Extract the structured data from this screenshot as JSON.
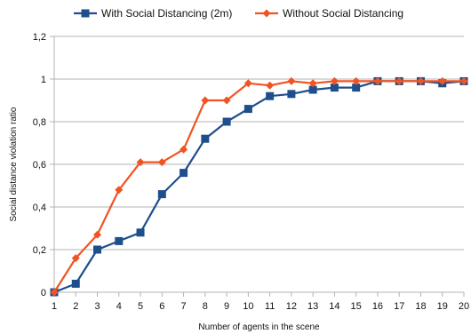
{
  "chart_data": {
    "type": "line",
    "xlabel": "Number of agents in the scene",
    "ylabel": "Social distance violation ratio",
    "categories": [
      "1",
      "2",
      "3",
      "4",
      "5",
      "6",
      "7",
      "8",
      "9",
      "10",
      "11",
      "12",
      "13",
      "14",
      "15",
      "16",
      "17",
      "18",
      "19",
      "20"
    ],
    "y_ticks": [
      "0",
      "0,2",
      "0,4",
      "0,6",
      "0,8",
      "1",
      "1,2"
    ],
    "ylim": [
      0,
      1.2
    ],
    "grid": "horizontal",
    "legend_position": "top",
    "series": [
      {
        "name": "With Social Distancing (2m)",
        "color": "#1f4e8c",
        "marker": "square",
        "values": [
          0.0,
          0.04,
          0.2,
          0.24,
          0.28,
          0.46,
          0.56,
          0.72,
          0.8,
          0.86,
          0.92,
          0.93,
          0.95,
          0.96,
          0.96,
          0.99,
          0.99,
          0.99,
          0.98,
          0.99
        ]
      },
      {
        "name": "Without Social Distancing",
        "color": "#f05423",
        "marker": "diamond",
        "values": [
          0.0,
          0.16,
          0.27,
          0.48,
          0.61,
          0.61,
          0.67,
          0.9,
          0.9,
          0.98,
          0.97,
          0.99,
          0.98,
          0.99,
          0.99,
          0.99,
          0.99,
          0.99,
          0.99,
          0.99
        ]
      }
    ]
  }
}
